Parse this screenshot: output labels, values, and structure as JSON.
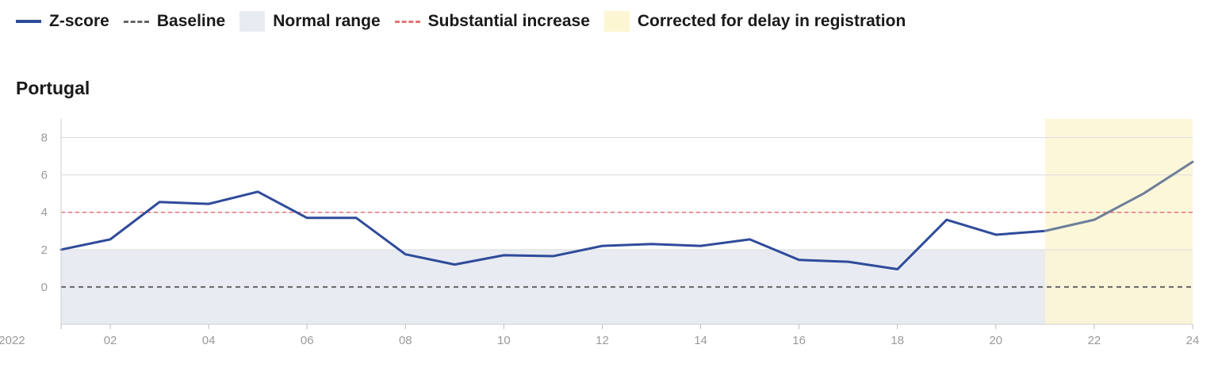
{
  "legend": {
    "zscore": "Z-score",
    "baseline": "Baseline",
    "normal": "Normal range",
    "substantial": "Substantial increase",
    "corrected": "Corrected for delay in registration"
  },
  "colors": {
    "zscore": "#2f4b9a",
    "corrected_line": "#6e7e9a",
    "normal_fill": "#e8ebf1",
    "corrected_fill": "#fdf6d3",
    "substantial": "#e57373",
    "baseline": "#666666"
  },
  "chart_data": {
    "type": "line",
    "title": "Portugal",
    "x_ticks": [
      {
        "x": 0,
        "label": "2022"
      },
      {
        "x": 2,
        "label": "02"
      },
      {
        "x": 4,
        "label": "04"
      },
      {
        "x": 6,
        "label": "06"
      },
      {
        "x": 8,
        "label": "08"
      },
      {
        "x": 10,
        "label": "10"
      },
      {
        "x": 12,
        "label": "12"
      },
      {
        "x": 14,
        "label": "14"
      },
      {
        "x": 16,
        "label": "16"
      },
      {
        "x": 18,
        "label": "18"
      },
      {
        "x": 20,
        "label": "20"
      },
      {
        "x": 22,
        "label": "22"
      },
      {
        "x": 24,
        "label": "24"
      }
    ],
    "y_ticks": [
      0,
      2,
      4,
      6,
      8
    ],
    "xlim": [
      1,
      24
    ],
    "ylim": [
      -2,
      9
    ],
    "series": [
      {
        "name": "Z-score",
        "x": [
          1,
          2,
          3,
          4,
          5,
          6,
          7,
          8,
          9,
          10,
          11,
          12,
          13,
          14,
          15,
          16,
          17,
          18,
          19,
          20,
          21
        ],
        "y": [
          2.0,
          2.55,
          4.55,
          4.45,
          5.1,
          3.7,
          3.7,
          1.75,
          1.2,
          1.7,
          1.65,
          2.2,
          2.3,
          2.2,
          2.55,
          1.45,
          1.35,
          0.95,
          3.6,
          2.8,
          3.0
        ]
      },
      {
        "name": "Corrected for delay in registration",
        "x": [
          21,
          22,
          23,
          24
        ],
        "y": [
          3.0,
          3.6,
          5.0,
          6.7
        ]
      }
    ],
    "baseline": 0,
    "normal_range": [
      -2,
      2
    ],
    "substantial_increase": 4,
    "corrected_range": [
      21,
      24
    ]
  }
}
